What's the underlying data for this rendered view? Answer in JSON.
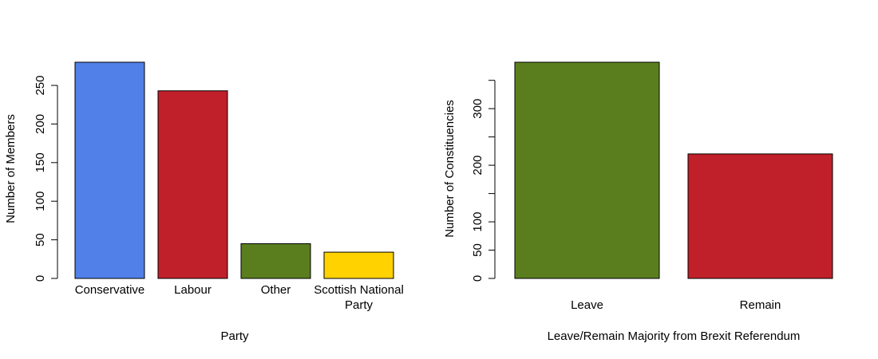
{
  "chart_data": [
    {
      "type": "bar",
      "title": "",
      "xlabel": "Party",
      "ylabel": "Number of Members",
      "categories": [
        "Conservative",
        "Labour",
        "Other",
        "Scottish National Party"
      ],
      "category_label_lines": [
        [
          "Conservative"
        ],
        [
          "Labour"
        ],
        [
          "Other"
        ],
        [
          "Scottish National",
          "Party"
        ]
      ],
      "values": [
        280,
        243,
        45,
        34
      ],
      "colors": [
        "#5080E8",
        "#C0202A",
        "#5A7E1E",
        "#FFD200"
      ],
      "ylim": [
        0,
        280
      ],
      "y_ticks": [
        0,
        50,
        100,
        150,
        200,
        250
      ],
      "grid": false,
      "legend": "none"
    },
    {
      "type": "bar",
      "title": "",
      "xlabel": "Leave/Remain Majority from Brexit Referendum",
      "ylabel": "Number of Constituencies",
      "categories": [
        "Leave",
        "Remain"
      ],
      "category_label_lines": [
        [
          "Leave"
        ],
        [
          "Remain"
        ]
      ],
      "values": [
        382,
        220
      ],
      "colors": [
        "#5A7E1E",
        "#C0202A"
      ],
      "ylim": [
        0,
        382
      ],
      "y_ticks": [
        0,
        50,
        100,
        150,
        200,
        250,
        300,
        350
      ],
      "y_tick_labels": [
        "0",
        "50",
        "100",
        "",
        "200",
        "",
        "300",
        ""
      ],
      "grid": false,
      "legend": "none"
    }
  ]
}
